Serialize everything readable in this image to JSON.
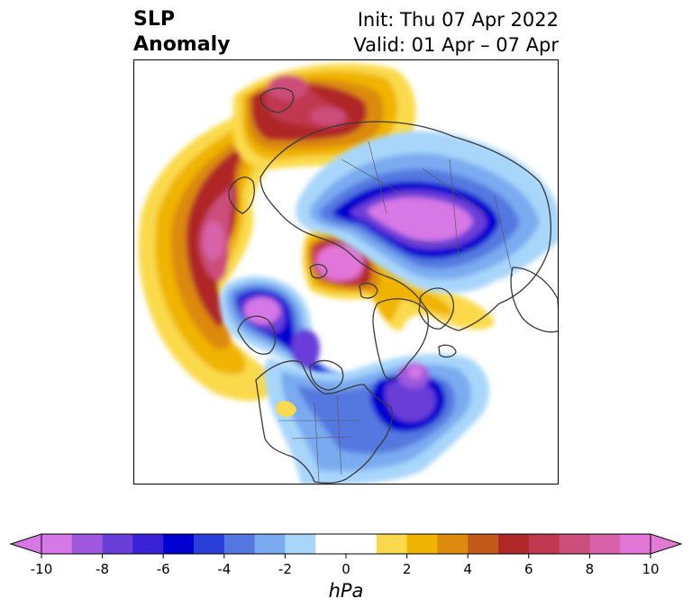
{
  "title": {
    "line1": "SLP",
    "line2": "Anomaly",
    "init": "Init: Thu 07 Apr 2022",
    "valid": "Valid: 01 Apr – 07 Apr"
  },
  "map": {
    "projection": "north-polar-stereographic",
    "variable": "sea level pressure anomaly",
    "features": [
      {
        "name": "high-pacific",
        "sign": "positive",
        "peak": 9
      },
      {
        "name": "high-russia-siberia",
        "sign": "positive",
        "peak": 8
      },
      {
        "name": "high-arctic-ocean",
        "sign": "positive",
        "peak": 10
      },
      {
        "name": "low-scandinavia-russia",
        "sign": "negative",
        "peak": -10
      },
      {
        "name": "low-alaska-yukon",
        "sign": "negative",
        "peak": -10
      },
      {
        "name": "low-hudson-bay",
        "sign": "negative",
        "peak": -6
      },
      {
        "name": "low-north-atlantic",
        "sign": "negative",
        "peak": -9
      }
    ]
  },
  "colorbar": {
    "unit": "hPa",
    "ticks": [
      "-10",
      "-8",
      "-6",
      "-4",
      "-2",
      "0",
      "2",
      "4",
      "6",
      "8",
      "10"
    ],
    "tick_values": [
      -10,
      -8,
      -6,
      -4,
      -2,
      0,
      2,
      4,
      6,
      8,
      10
    ],
    "range": [
      -10,
      10
    ],
    "extend": "both",
    "colors": [
      "#d678e6",
      "#9e58de",
      "#6a3ed8",
      "#3a22d6",
      "#0000cf",
      "#2a3ed8",
      "#5478e0",
      "#7aaaf0",
      "#a8d6fa",
      "#ffffff",
      "#ffffff",
      "#fada4c",
      "#f0b400",
      "#dc8a10",
      "#c45a1a",
      "#b02828",
      "#c03850",
      "#cc4e7a",
      "#d862a8",
      "#e276d8"
    ],
    "under_color": "#d878e6",
    "over_color": "#e27ad8"
  }
}
